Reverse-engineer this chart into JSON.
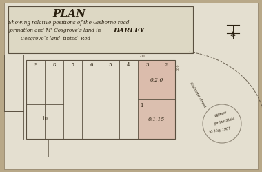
{
  "bg_color": "#b8a888",
  "paper_color": "#ddd8c4",
  "paper_light": "#e4dfd0",
  "title": "PLAN",
  "subtitle1": "Showing relative positions of the Gisborne road",
  "subtitle2": "formation and Mʳ Cosgroveʼs land in  DARLEY",
  "subtitle3": "Cosgroveʼs land  tinted  Red",
  "lot_numbers_top": [
    "9",
    "8",
    "7",
    "6",
    "5",
    "4",
    "3",
    "2"
  ],
  "lot_bottom": "10",
  "lot1": "1",
  "pink_label1": "0.2.0",
  "pink_label2": "0.1.15",
  "grid_line_color": "#5a5040",
  "pink_color": "#d4a090",
  "text_color": "#2a2010",
  "dim_color": "#504030"
}
